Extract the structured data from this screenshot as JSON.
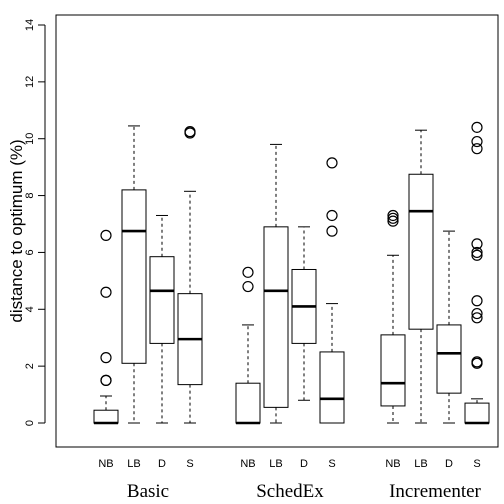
{
  "chart_data": {
    "type": "box",
    "ylabel": "distance to optimum (%)",
    "ylim": [
      -0.3,
      14.6
    ],
    "yticks": [
      0,
      2,
      4,
      6,
      8,
      10,
      12,
      14
    ],
    "ytick_labels": [
      "0",
      "2",
      "4",
      "6",
      "8",
      "10",
      "12",
      "14"
    ],
    "groups": [
      "Basic",
      "SchedEx",
      "Incrementer"
    ],
    "box_labels": [
      "NB",
      "LB",
      "D",
      "S"
    ],
    "boxes": [
      {
        "group": "Basic",
        "label": "NB",
        "min": 0,
        "q1": 0,
        "median": 0,
        "q3": 0.45,
        "max": 0.95,
        "outliers": [
          1.5,
          1.5,
          2.3,
          4.6,
          6.6
        ]
      },
      {
        "group": "Basic",
        "label": "LB",
        "min": 0,
        "q1": 2.1,
        "median": 6.75,
        "q3": 8.2,
        "max": 10.45,
        "outliers": []
      },
      {
        "group": "Basic",
        "label": "D",
        "min": 0,
        "q1": 2.8,
        "median": 4.65,
        "q3": 5.85,
        "max": 7.3,
        "outliers": []
      },
      {
        "group": "Basic",
        "label": "S",
        "min": 0,
        "q1": 1.35,
        "median": 2.95,
        "q3": 4.55,
        "max": 8.15,
        "outliers": [
          10.2,
          10.25
        ]
      },
      {
        "group": "SchedEx",
        "label": "NB",
        "min": 0,
        "q1": 0,
        "median": 0,
        "q3": 1.4,
        "max": 3.45,
        "outliers": [
          4.8,
          5.3
        ]
      },
      {
        "group": "SchedEx",
        "label": "LB",
        "min": 0,
        "q1": 0.55,
        "median": 4.65,
        "q3": 6.9,
        "max": 9.8,
        "outliers": []
      },
      {
        "group": "SchedEx",
        "label": "D",
        "min": 0.8,
        "q1": 2.8,
        "median": 4.1,
        "q3": 5.4,
        "max": 6.9,
        "outliers": []
      },
      {
        "group": "SchedEx",
        "label": "S",
        "min": 0,
        "q1": 0,
        "median": 0.85,
        "q3": 2.5,
        "max": 4.2,
        "outliers": [
          6.75,
          7.3,
          9.15
        ]
      },
      {
        "group": "Incrementer",
        "label": "NB",
        "min": 0,
        "q1": 0.6,
        "median": 1.4,
        "q3": 3.1,
        "max": 5.9,
        "outliers": [
          7.1,
          7.2,
          7.3
        ]
      },
      {
        "group": "Incrementer",
        "label": "LB",
        "min": 0,
        "q1": 3.3,
        "median": 7.45,
        "q3": 8.75,
        "max": 10.3,
        "outliers": []
      },
      {
        "group": "Incrementer",
        "label": "D",
        "min": 0,
        "q1": 1.05,
        "median": 2.45,
        "q3": 3.45,
        "max": 6.75,
        "outliers": []
      },
      {
        "group": "Incrementer",
        "label": "S",
        "min": 0,
        "q1": 0,
        "median": 0,
        "q3": 0.7,
        "max": 0.85,
        "outliers": [
          2.1,
          2.15,
          3.7,
          3.85,
          4.3,
          5.9,
          6.0,
          6.3,
          9.65,
          9.9,
          10.4
        ]
      }
    ],
    "colors": {
      "stroke": "#000000",
      "fill": "#ffffff"
    }
  }
}
